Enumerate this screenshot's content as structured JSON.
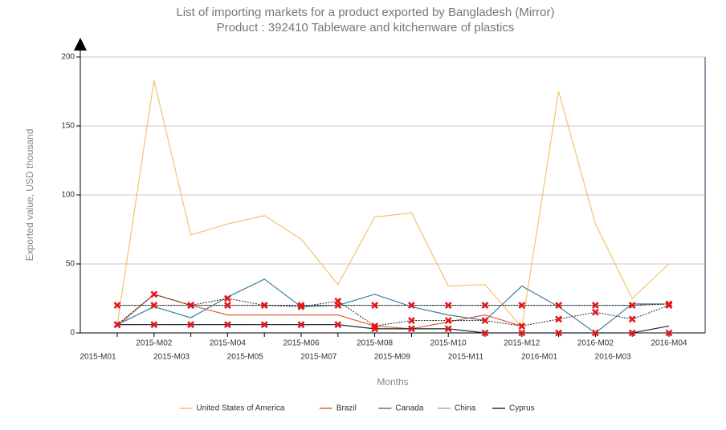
{
  "chart_data": {
    "type": "line",
    "title": "List of importing markets for a product exported by Bangladesh (Mirror)",
    "subtitle": "Product : 392410 Tableware and kitchenware of plastics",
    "y_label": "Exported value, USD thousand",
    "x_label": "Months",
    "categories": [
      "2015-M01",
      "2015-M02",
      "2015-M03",
      "2015-M04",
      "2015-M05",
      "2015-M06",
      "2015-M07",
      "2015-M08",
      "2015-M09",
      "2015-M10",
      "2015-M11",
      "2015-M12",
      "2016-M01",
      "2016-M02",
      "2016-M03",
      "2016-M04"
    ],
    "ylim": [
      0,
      200
    ],
    "yticks": [
      0,
      50,
      100,
      150,
      200
    ],
    "grid": true,
    "series": [
      {
        "name": "United States of America",
        "color": "#f5c26b",
        "values": [
          6,
          183,
          71,
          79,
          85,
          68,
          35,
          84,
          87,
          34,
          35,
          4,
          175,
          79,
          25,
          50
        ]
      },
      {
        "name": "Brazil",
        "color": "#e0603a",
        "values": [
          5,
          28,
          20,
          13,
          13,
          13,
          13,
          5,
          3,
          8,
          13,
          5,
          null,
          null,
          null,
          null
        ]
      },
      {
        "name": "Canada",
        "color": "#3d7f9a",
        "values": [
          6,
          19,
          11,
          26,
          39,
          19,
          20,
          28,
          19,
          13,
          9,
          34,
          19,
          0,
          21,
          21
        ]
      },
      {
        "name": "China",
        "color": "#aaaaaa",
        "values": [
          20,
          20,
          20,
          20,
          20,
          20,
          20,
          20,
          20,
          20,
          20,
          20,
          20,
          20,
          20,
          21
        ]
      },
      {
        "name": "Cyprus",
        "color": "#1f3552",
        "values": [
          6,
          6,
          6,
          6,
          6,
          6,
          6,
          3,
          3,
          3,
          0,
          0,
          0,
          0,
          0,
          5
        ]
      }
    ],
    "marker_series": [
      {
        "color": "#e8161b",
        "values": [
          20,
          20,
          20,
          20,
          20,
          20,
          20,
          20,
          20,
          20,
          20,
          20,
          20,
          20,
          20,
          21
        ]
      },
      {
        "color": "#e8161b",
        "values": [
          6,
          28,
          20,
          25,
          20,
          19,
          23,
          5,
          9,
          9,
          9,
          5,
          10,
          15,
          10,
          20
        ]
      },
      {
        "color": "#e8161b",
        "values": [
          6,
          6,
          6,
          6,
          6,
          6,
          6,
          3,
          3,
          3,
          0,
          0,
          0,
          0,
          0,
          0
        ]
      }
    ]
  }
}
